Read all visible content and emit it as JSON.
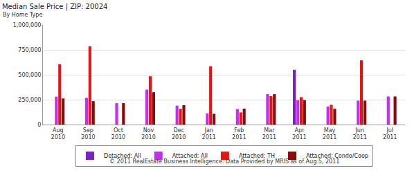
{
  "chart_data": {
    "type": "bar",
    "title": "Median Sale Price | ZIP: 20024",
    "subtitle": "By Home Type",
    "footer": "© 2011 RealEstate Business Intelligence. Data Provided by MRIS as of Aug 5, 2011",
    "categories": [
      "Aug 2010",
      "Sep 2010",
      "Oct 2010",
      "Nov 2010",
      "Dec 2010",
      "Jan 2011",
      "Feb 2011",
      "Mar 2011",
      "Apr 2011",
      "May 2011",
      "Jun 2011",
      "Jul 2011"
    ],
    "series": [
      {
        "name": "Detached: All",
        "color": "#7a22c8",
        "values": [
          null,
          null,
          null,
          null,
          null,
          null,
          null,
          null,
          550000,
          null,
          null,
          null
        ]
      },
      {
        "name": "Attached: All",
        "color": "#c030ee",
        "values": [
          280000,
          268000,
          215000,
          350000,
          190000,
          112000,
          155000,
          305000,
          245000,
          180000,
          240000,
          282000
        ]
      },
      {
        "name": "Attached: TH",
        "color": "#e81414",
        "values": [
          605000,
          785000,
          null,
          485000,
          158000,
          585000,
          122000,
          285000,
          275000,
          198000,
          645000,
          null
        ]
      },
      {
        "name": "Attached: Condo/Coop",
        "color": "#8c0a0a",
        "values": [
          262000,
          235000,
          215000,
          325000,
          195000,
          108000,
          160000,
          305000,
          245000,
          158000,
          240000,
          282000
        ]
      }
    ],
    "ylim": [
      0,
      1000000
    ],
    "yticks": [
      0,
      {
        "value": 250000,
        "label": "250,000"
      },
      {
        "value": 500000,
        "label": "500,000"
      },
      {
        "value": 750000,
        "label": "750,000"
      },
      {
        "value": 1000000,
        "label": "1,000,000"
      }
    ],
    "grid": true,
    "legend": "bottom"
  }
}
